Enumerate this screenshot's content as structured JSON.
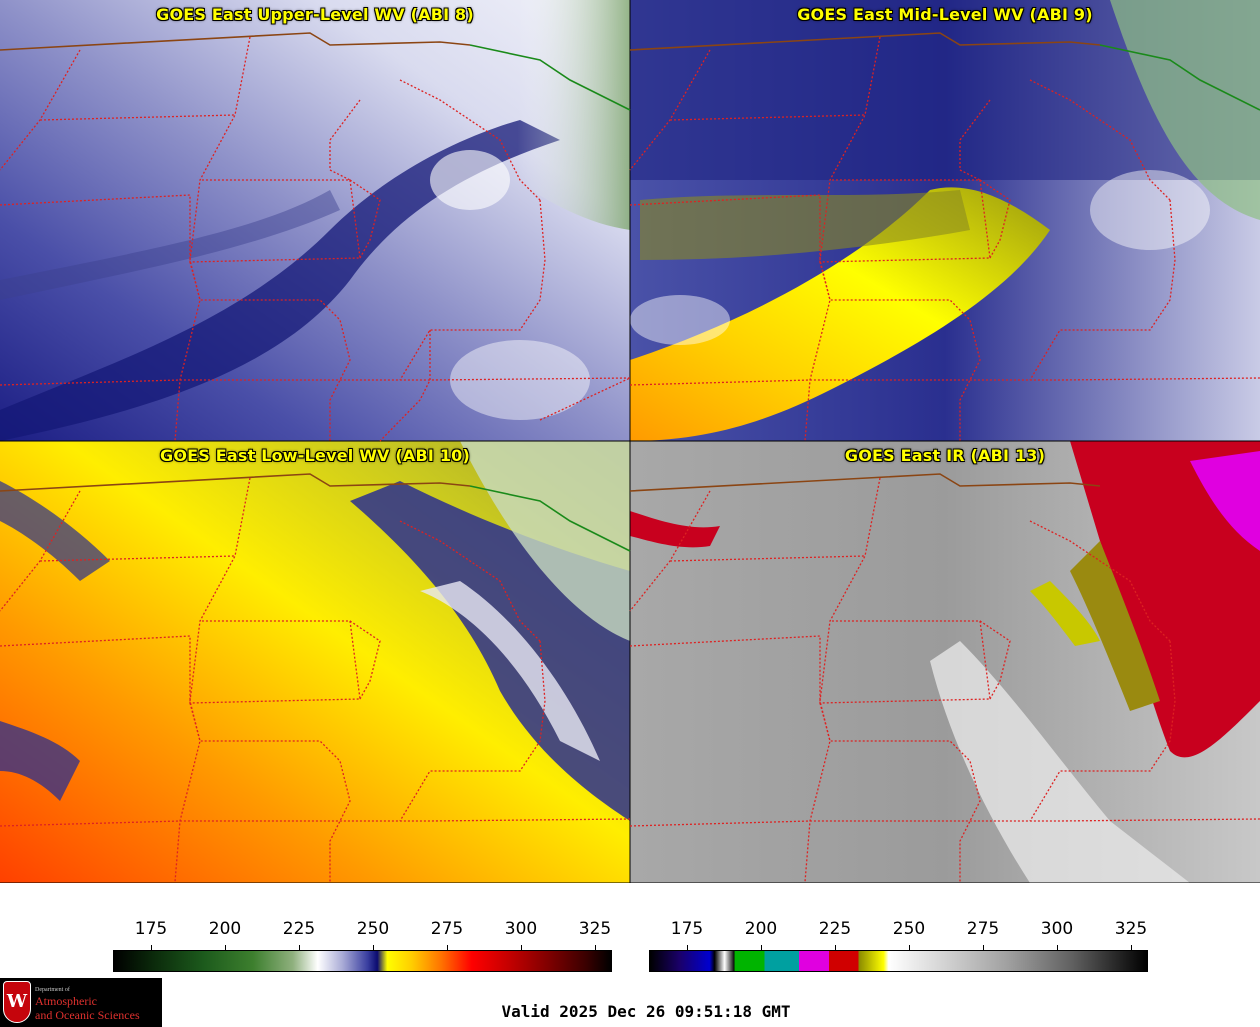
{
  "panels": [
    {
      "id": "p1",
      "title": "GOES East Upper-Level WV (ABI 8)",
      "style": "upper"
    },
    {
      "id": "p2",
      "title": "GOES East Mid-Level WV (ABI 9)",
      "style": "mid"
    },
    {
      "id": "p3",
      "title": "GOES East Low-Level WV (ABI 10)",
      "style": "low"
    },
    {
      "id": "p4",
      "title": "GOES East IR (ABI 13)",
      "style": "ir"
    }
  ],
  "colorbars": {
    "wv": {
      "ticks": [
        "175",
        "200",
        "225",
        "250",
        "275",
        "300",
        "325"
      ]
    },
    "ir": {
      "ticks": [
        "175",
        "200",
        "225",
        "250",
        "275",
        "300",
        "325"
      ]
    }
  },
  "logo": {
    "line1": "Department of",
    "line2": "Atmospheric",
    "line3": "and Oceanic Sciences",
    "mark": "W"
  },
  "valid_time": "Valid 2025 Dec 26 09:51:18 GMT",
  "colors": {
    "title": "#ffff00",
    "state_border": "#dd2222",
    "intl_border": "#8b4513",
    "great_lakes": "#1a8a1a"
  }
}
